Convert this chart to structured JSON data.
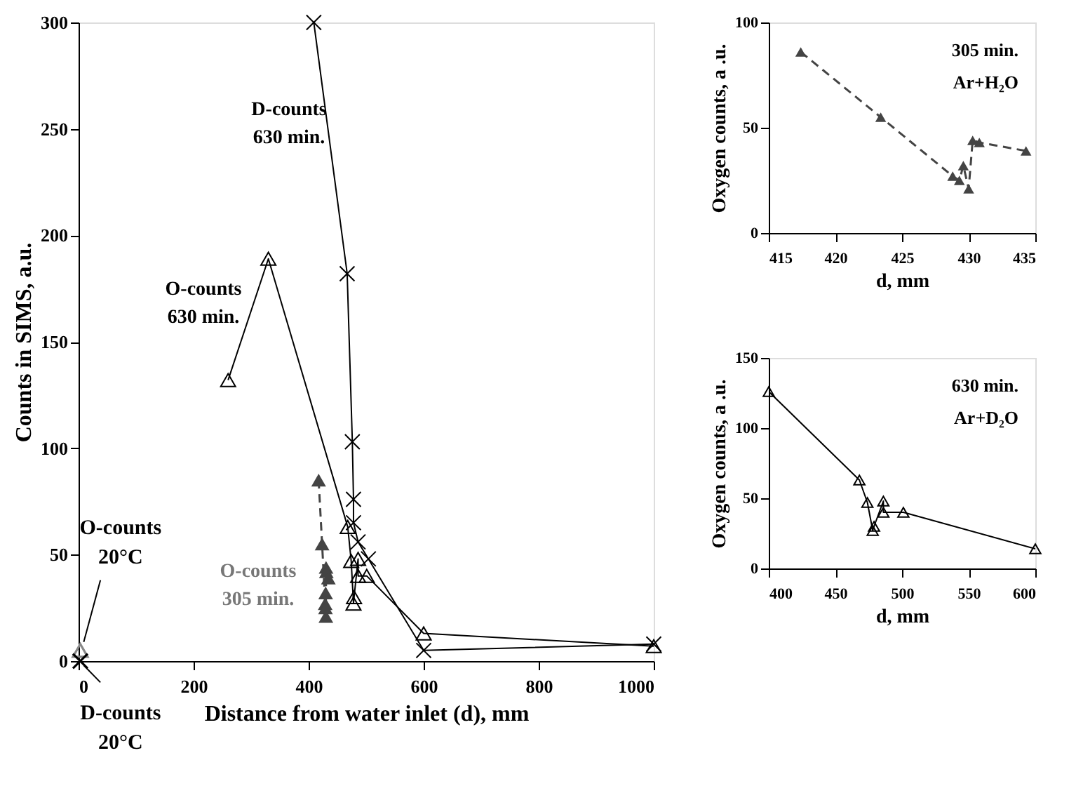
{
  "chart_data": [
    {
      "type": "line",
      "xlabel": "Distance from water inlet (d), mm",
      "ylabel": "Counts in SIMS, a.u.",
      "xlim": [
        0,
        1000
      ],
      "ylim": [
        0,
        300
      ],
      "xticks": [
        0,
        200,
        400,
        600,
        800,
        1000
      ],
      "yticks": [
        0,
        50,
        100,
        150,
        200,
        250,
        300
      ],
      "grid": false,
      "series": [
        {
          "color": "#000000",
          "marker": "cross",
          "x": [
            409,
            467,
            476,
            478,
            478,
            486,
            504,
            600,
            1000
          ],
          "values": [
            300,
            182,
            103,
            76,
            65,
            56,
            48,
            5,
            8
          ]
        },
        {
          "color": "#000000",
          "marker": "triangle",
          "x": [
            260,
            330,
            468,
            474,
            478,
            479,
            486,
            486,
            501,
            600,
            1000
          ],
          "values": [
            132,
            189,
            63,
            47,
            27,
            30,
            48,
            40,
            40,
            13,
            7
          ]
        },
        {
          "color": "#444444",
          "marker": "triangle",
          "line_style": "dashed",
          "x": [
            417.4,
            423.4,
            428.8,
            429.3,
            429.6,
            430.0,
            430.3,
            430.8,
            434.3
          ],
          "values": [
            85,
            55,
            27,
            25,
            32,
            21,
            44,
            42,
            39
          ]
        },
        {
          "type": "scatter",
          "color": "#888888",
          "marker": "triangle",
          "x": [
            3
          ],
          "values": [
            5
          ]
        },
        {
          "type": "scatter",
          "color": "#000000",
          "marker": "cross",
          "x": [
            3
          ],
          "values": [
            0
          ]
        }
      ],
      "annotations": [
        "D-counts\n630 min.",
        "O-counts\n630 min.",
        "O-counts\n305 min.",
        {
          "text": "O-counts\n20°C",
          "x": 3,
          "y": 5
        },
        {
          "text": "D-counts\n20°C",
          "x": 3,
          "y": 0
        }
      ]
    },
    {
      "type": "line",
      "xlabel": "d, mm",
      "ylabel": "Oxygen counts, a .u.",
      "xlim": [
        415,
        435
      ],
      "ylim": [
        0,
        100
      ],
      "xticks": [
        415,
        420,
        425,
        430,
        435
      ],
      "yticks": [
        0,
        50,
        100
      ],
      "grid": false,
      "series": [
        {
          "color": "#444444",
          "marker": "triangle",
          "line_style": "dashed",
          "x": [
            417.4,
            423.4,
            428.8,
            429.3,
            429.6,
            430.0,
            430.3,
            430.8,
            434.3
          ],
          "values": [
            86,
            55,
            27,
            25,
            32,
            21,
            44,
            43,
            39
          ]
        }
      ],
      "annotations": [
        "305 min.",
        "Ar+H₂O"
      ]
    },
    {
      "type": "line",
      "xlabel": "d, mm",
      "ylabel": "Oxygen counts, a .u.",
      "xlim": [
        400,
        600
      ],
      "ylim": [
        0,
        150
      ],
      "xticks": [
        400,
        450,
        500,
        550,
        600
      ],
      "yticks": [
        0,
        50,
        100,
        150
      ],
      "grid": false,
      "series": [
        {
          "color": "#000000",
          "marker": "triangle",
          "x": [
            400,
            468,
            474,
            478,
            479,
            486,
            486,
            501,
            600
          ],
          "values": [
            126,
            63,
            47,
            27,
            30,
            48,
            40,
            40,
            14
          ]
        }
      ],
      "annotations": [
        "630 min.",
        "Ar+D₂O"
      ]
    }
  ]
}
